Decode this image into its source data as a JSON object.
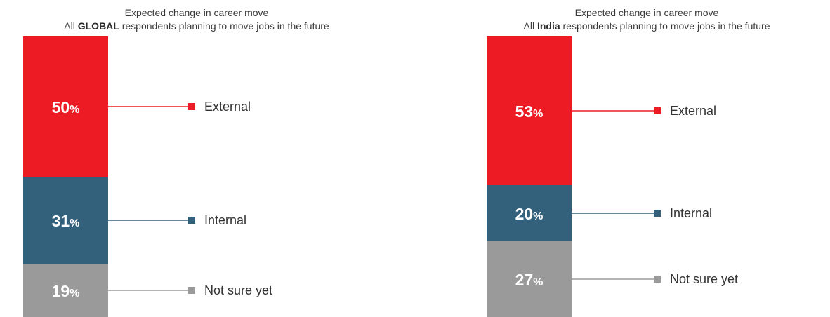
{
  "chart_data": [
    {
      "type": "bar",
      "subtype": "stacked-100",
      "title": "Expected change in career move",
      "subtitle_prefix": "All",
      "subtitle_emphasis": "GLOBAL",
      "subtitle_suffix": "respondents planning to move jobs in the future",
      "categories": [
        "External",
        "Internal",
        "Not sure yet"
      ],
      "values": [
        50,
        31,
        19
      ],
      "unit": "%",
      "colors": [
        "#ed1c24",
        "#33607a",
        "#9a9a9a"
      ]
    },
    {
      "type": "bar",
      "subtype": "stacked-100",
      "title": "Expected change in career move",
      "subtitle_prefix": "All",
      "subtitle_emphasis": "India",
      "subtitle_suffix": "respondents planning to move jobs in the future",
      "categories": [
        "External",
        "Internal",
        "Not sure yet"
      ],
      "values": [
        53,
        20,
        27
      ],
      "unit": "%",
      "colors": [
        "#ed1c24",
        "#33607a",
        "#9a9a9a"
      ]
    }
  ]
}
